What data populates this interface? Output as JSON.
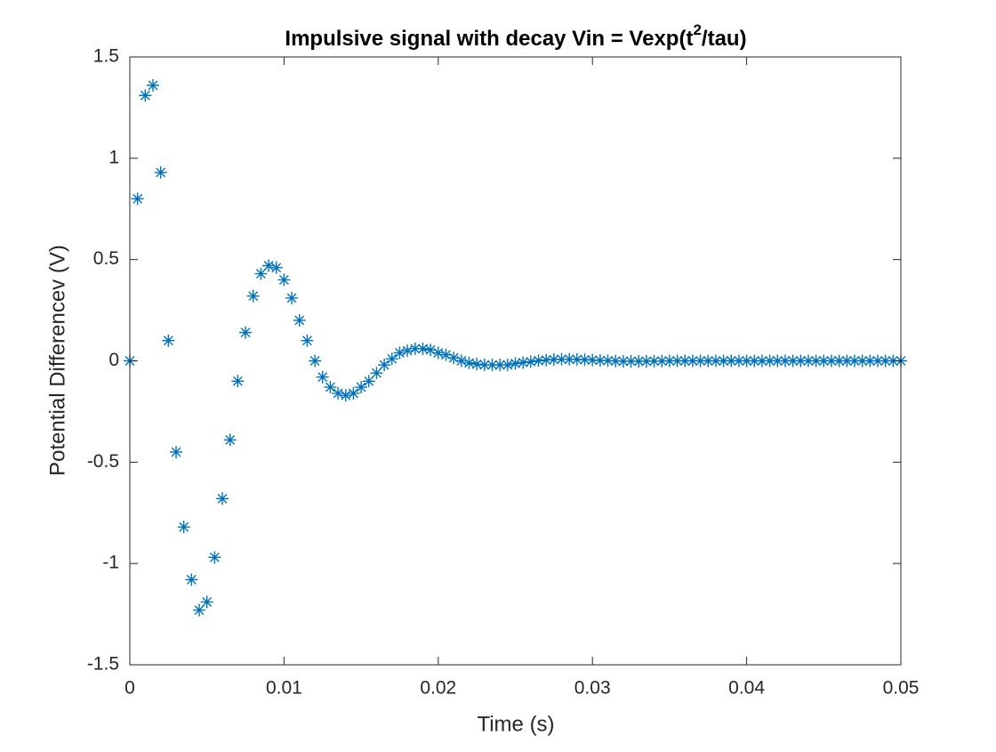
{
  "chart_data": {
    "type": "scatter",
    "title": [
      "Impulsive signal with decay Vin = Vexp(t",
      "2",
      "/tau)"
    ],
    "x_label": "Time (s)",
    "y_label": "Potential Differencev (V)",
    "marker": "*",
    "color": "#0072bd",
    "xlim": [
      0,
      0.05
    ],
    "ylim": [
      -1.5,
      1.5
    ],
    "xticks": [
      0,
      0.01,
      0.02,
      0.03,
      0.04,
      0.05
    ],
    "yticks": [
      -1.5,
      -1,
      -0.5,
      0,
      0.5,
      1,
      1.5
    ],
    "x": [
      0,
      0.0005,
      0.001,
      0.0015,
      0.002,
      0.0025,
      0.003,
      0.0035,
      0.004,
      0.0045,
      0.005,
      0.0055,
      0.006,
      0.0065,
      0.007,
      0.0075,
      0.008,
      0.0085,
      0.009,
      0.0095,
      0.01,
      0.0105,
      0.011,
      0.0115,
      0.012,
      0.0125,
      0.013,
      0.0135,
      0.014,
      0.0145,
      0.015,
      0.0155,
      0.016,
      0.0165,
      0.017,
      0.0175,
      0.018,
      0.0185,
      0.019,
      0.0195,
      0.02,
      0.0205,
      0.021,
      0.0215,
      0.022,
      0.0225,
      0.023,
      0.0235,
      0.024,
      0.0245,
      0.025,
      0.0255,
      0.026,
      0.0265,
      0.027,
      0.0275,
      0.028,
      0.0285,
      0.029,
      0.0295,
      0.03,
      0.0305,
      0.031,
      0.0315,
      0.032,
      0.0325,
      0.033,
      0.0335,
      0.034,
      0.0345,
      0.035,
      0.0355,
      0.036,
      0.0365,
      0.037,
      0.0375,
      0.038,
      0.0385,
      0.039,
      0.0395,
      0.04,
      0.0405,
      0.041,
      0.0415,
      0.042,
      0.0425,
      0.043,
      0.0435,
      0.044,
      0.0445,
      0.045,
      0.0455,
      0.046,
      0.0465,
      0.047,
      0.0475,
      0.048,
      0.0485,
      0.049,
      0.0495,
      0.05
    ],
    "values": [
      0,
      0.8,
      1.31,
      1.36,
      0.93,
      0.1,
      -0.45,
      -0.82,
      -1.08,
      -1.23,
      -1.19,
      -0.97,
      -0.68,
      -0.39,
      -0.1,
      0.14,
      0.32,
      0.43,
      0.47,
      0.46,
      0.4,
      0.31,
      0.2,
      0.1,
      0,
      -0.08,
      -0.13,
      -0.16,
      -0.17,
      -0.16,
      -0.13,
      -0.1,
      -0.06,
      -0.02,
      0.01,
      0.04,
      0.05,
      0.06,
      0.06,
      0.054,
      0.04,
      0.03,
      0.015,
      0,
      -0.01,
      -0.016,
      -0.02,
      -0.02,
      -0.02,
      -0.02,
      -0.013,
      -0.008,
      -0.004,
      0.001,
      0.004,
      0.007,
      0.008,
      0.008,
      0.007,
      0.006,
      0.004,
      0.002,
      0.001,
      -0.001,
      -0.002,
      -0.002,
      -0.002,
      -0.002,
      -0.001,
      -0.001,
      0,
      0,
      0,
      0,
      0,
      0,
      0,
      0,
      0,
      0,
      0,
      0,
      0,
      0,
      0,
      0,
      0,
      0,
      0,
      0,
      0,
      0,
      0,
      0,
      0,
      0,
      0,
      0,
      0,
      0,
      0
    ]
  }
}
